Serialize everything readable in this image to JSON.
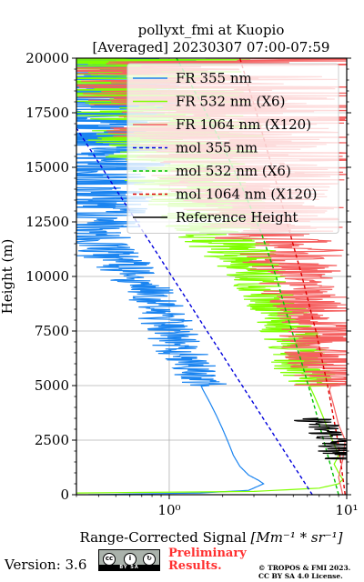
{
  "colors": {
    "fr355": "#1a84f0",
    "fr532": "#80ff00",
    "fr1064": "#f56060",
    "mol355": "#0000dd",
    "mol532": "#00c000",
    "mol1064": "#dd0000",
    "ref": "#000000"
  },
  "footer": {
    "version": "Version: 3.6",
    "license_badge": "BY SA",
    "preliminary": [
      "Preliminary",
      "Results."
    ],
    "copyright": [
      "© TROPOS & FMI 2023.",
      "CC BY SA 4.0 License."
    ]
  },
  "chart_data": {
    "type": "line",
    "title": [
      "pollyxt_fmi at Kuopio",
      "[Averaged] 20230307 07:00-07:59"
    ],
    "xlabel_prefix": "Range-Corrected Signal ",
    "xlabel_unit": "[Mm⁻¹ * sr⁻¹]",
    "ylabel": "Height (m)",
    "xscale": "log",
    "xlim": [
      0.3,
      10
    ],
    "ylim": [
      0,
      20000
    ],
    "x_ticks": [
      {
        "value": 1,
        "label": "10⁰"
      },
      {
        "value": 10,
        "label": "10¹"
      }
    ],
    "y_ticks": [
      {
        "value": 0,
        "label": "0"
      },
      {
        "value": 2500,
        "label": "2500"
      },
      {
        "value": 5000,
        "label": "5000"
      },
      {
        "value": 7500,
        "label": "7500"
      },
      {
        "value": 10000,
        "label": "10000"
      },
      {
        "value": 12500,
        "label": "12500"
      },
      {
        "value": 15000,
        "label": "15000"
      },
      {
        "value": 17500,
        "label": "17500"
      },
      {
        "value": 20000,
        "label": "20000"
      }
    ],
    "grid": true,
    "legend_position": "top-right",
    "series": [
      {
        "name": "FR 355 nm",
        "style": "solid",
        "color_key": "fr355",
        "noise": 0.05,
        "noise_from": 5000,
        "points": [
          [
            0.35,
            0
          ],
          [
            1.5,
            80
          ],
          [
            2.8,
            200
          ],
          [
            3.4,
            500
          ],
          [
            3.2,
            650
          ],
          [
            2.8,
            900
          ],
          [
            2.5,
            1300
          ],
          [
            2.3,
            1800
          ],
          [
            2.15,
            2400
          ],
          [
            2.0,
            3000
          ],
          [
            1.85,
            3600
          ],
          [
            1.7,
            4200
          ],
          [
            1.55,
            4800
          ],
          [
            1.45,
            5300
          ],
          [
            1.35,
            5700
          ],
          [
            1.25,
            6300
          ],
          [
            1.15,
            6700
          ],
          [
            1.05,
            7200
          ],
          [
            0.98,
            7800
          ],
          [
            0.9,
            8400
          ],
          [
            0.8,
            9200
          ],
          [
            0.65,
            9800
          ],
          [
            0.55,
            10500
          ],
          [
            0.45,
            11000
          ],
          [
            0.38,
            12000
          ],
          [
            0.4,
            13500
          ],
          [
            0.45,
            15000
          ],
          [
            0.45,
            17000
          ],
          [
            0.42,
            18500
          ],
          [
            0.4,
            20000
          ]
        ]
      },
      {
        "name": "FR 532 nm (X6)",
        "style": "solid",
        "color_key": "fr532",
        "noise": 0.06,
        "noise_from": 5000,
        "points": [
          [
            0.3,
            80
          ],
          [
            3.0,
            150
          ],
          [
            7.0,
            300
          ],
          [
            9.0,
            500
          ],
          [
            9.5,
            700
          ],
          [
            9.0,
            1000
          ],
          [
            8.5,
            1400
          ],
          [
            9.0,
            1800
          ],
          [
            8.5,
            2300
          ],
          [
            8.0,
            2800
          ],
          [
            7.5,
            3400
          ],
          [
            7.0,
            4000
          ],
          [
            6.5,
            4600
          ],
          [
            6.0,
            5200
          ],
          [
            5.5,
            5900
          ],
          [
            5.2,
            6700
          ],
          [
            5.0,
            7400
          ],
          [
            4.5,
            8100
          ],
          [
            4.0,
            8800
          ],
          [
            3.5,
            9600
          ],
          [
            3.0,
            10300
          ],
          [
            2.5,
            11000
          ],
          [
            2.2,
            11500
          ],
          [
            2.0,
            12000
          ],
          [
            1.7,
            12800
          ],
          [
            1.5,
            14000
          ],
          [
            1.3,
            15500
          ],
          [
            1.0,
            17000
          ],
          [
            0.8,
            18500
          ],
          [
            0.6,
            20000
          ]
        ]
      },
      {
        "name": "FR 1064 nm (X120)",
        "style": "solid",
        "color_key": "fr1064",
        "noise": 0.08,
        "noise_from": 5000,
        "points": [
          [
            9.5,
            0
          ],
          [
            9.0,
            800
          ],
          [
            9.5,
            1600
          ],
          [
            9.8,
            2500
          ],
          [
            9.0,
            3200
          ],
          [
            8.5,
            4000
          ],
          [
            8.0,
            4800
          ],
          [
            8.5,
            5500
          ],
          [
            7.5,
            6500
          ],
          [
            7.0,
            7300
          ],
          [
            6.5,
            8000
          ],
          [
            6.0,
            8800
          ],
          [
            5.5,
            9600
          ],
          [
            5.0,
            10500
          ],
          [
            4.5,
            11300
          ],
          [
            4.0,
            12000
          ],
          [
            3.5,
            13000
          ],
          [
            3.0,
            14000
          ],
          [
            2.8,
            15000
          ],
          [
            2.5,
            16000
          ],
          [
            2.2,
            17000
          ],
          [
            2.0,
            18000
          ],
          [
            1.8,
            19000
          ],
          [
            1.6,
            20000
          ]
        ]
      },
      {
        "name": "mol 355 nm",
        "style": "dashed",
        "color_key": "mol355",
        "points": [
          [
            6.4,
            0
          ],
          [
            0.3,
            16800
          ]
        ]
      },
      {
        "name": "mol 532 nm (X6)",
        "style": "dashed",
        "color_key": "mol532",
        "points": [
          [
            9.0,
            0
          ],
          [
            7.7,
            2000
          ],
          [
            6.6,
            4000
          ],
          [
            5.6,
            6000
          ],
          [
            4.7,
            8000
          ],
          [
            4.0,
            10000
          ],
          [
            3.3,
            12000
          ],
          [
            2.6,
            14000
          ],
          [
            2.0,
            16000
          ],
          [
            1.5,
            18000
          ],
          [
            1.1,
            20000
          ]
        ]
      },
      {
        "name": "mol 1064 nm (X120)",
        "style": "dashed",
        "color_key": "mol1064",
        "points": [
          [
            9.8,
            0
          ],
          [
            8.9,
            2500
          ],
          [
            7.8,
            5000
          ],
          [
            6.7,
            7500
          ],
          [
            5.6,
            10000
          ],
          [
            4.6,
            12500
          ],
          [
            3.8,
            15000
          ],
          [
            3.1,
            17500
          ],
          [
            2.5,
            20000
          ]
        ]
      },
      {
        "name": "Reference Height",
        "style": "solid",
        "color_key": "ref",
        "noise": 0.04,
        "noise_from": 0,
        "points": [
          [
            6.4,
            3500
          ],
          [
            6.8,
            3300
          ],
          [
            7.2,
            3100
          ],
          [
            7.7,
            2900
          ],
          [
            8.2,
            2600
          ],
          [
            8.5,
            2300
          ],
          [
            9.0,
            2000
          ],
          [
            9.5,
            1800
          ],
          [
            10.0,
            1600
          ]
        ]
      }
    ]
  }
}
